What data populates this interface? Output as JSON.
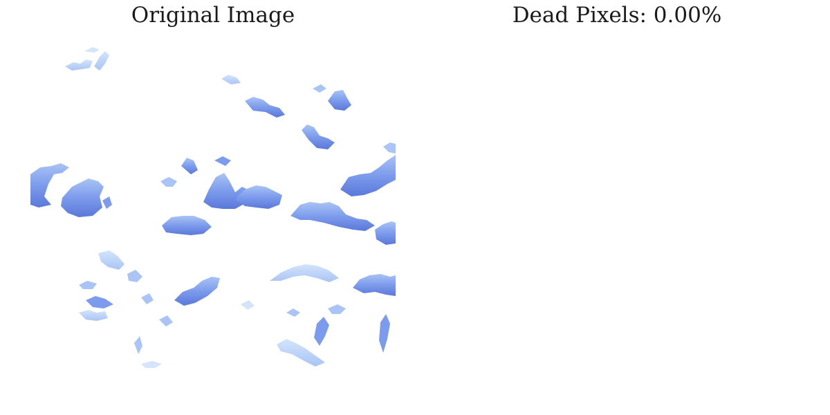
{
  "panels": {
    "left": {
      "title": "Original Image"
    },
    "right": {
      "title": "Dead Pixels: 0.00%"
    }
  },
  "colors": {
    "background": "#ffffff",
    "title_text": "#1a1a1a",
    "cloud_dark": "#5a78d8",
    "cloud_mid": "#7d9bec",
    "cloud_light": "#a9c4f5",
    "cloud_faint": "#d4e4fb"
  }
}
